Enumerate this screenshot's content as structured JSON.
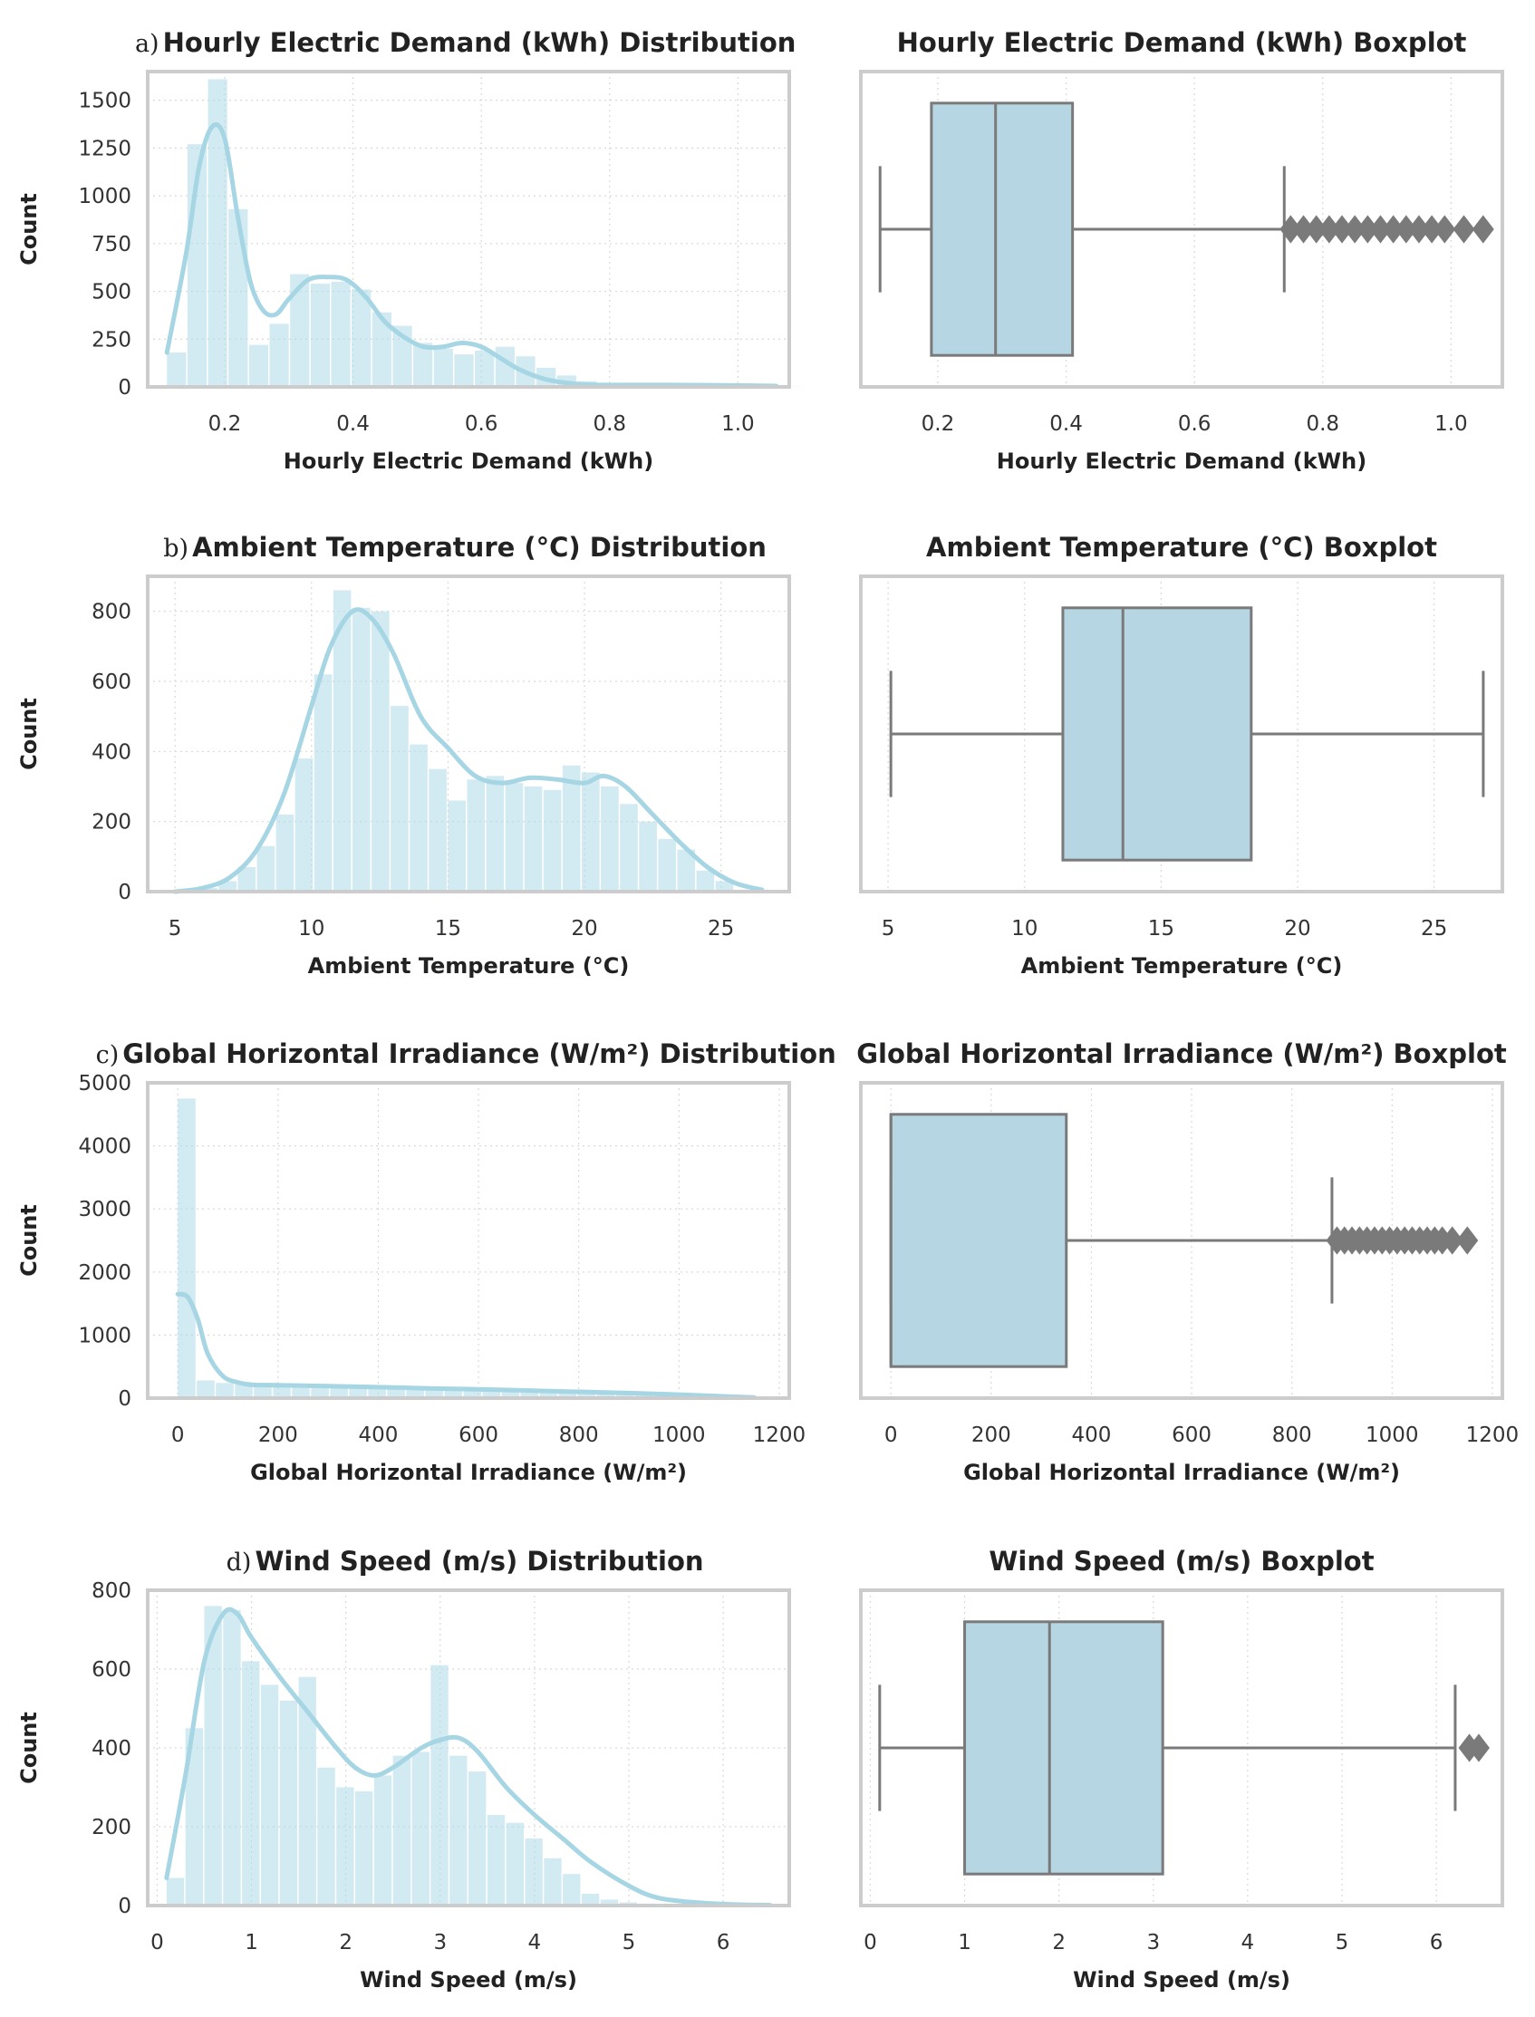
{
  "colors": {
    "bar": "#add8e6",
    "kde": "#a6d5e3",
    "box_fill": "#b5d6e2",
    "box_line": "#7a7a7a",
    "frame": "#cccccc",
    "grid": "#d9d9d9"
  },
  "chart_data": [
    {
      "type": "histogram",
      "panel_letter": "a)",
      "title": "Hourly Electric Demand (kWh) Distribution",
      "xlabel": "Hourly Electric Demand (kWh)",
      "ylabel": "Count",
      "xlim": [
        0.08,
        1.08
      ],
      "ylim": [
        0,
        1650
      ],
      "xticks": [
        0.2,
        0.4,
        0.6,
        0.8,
        1.0
      ],
      "xtick_labels": [
        "0.2",
        "0.4",
        "0.6",
        "0.8",
        "1.0"
      ],
      "yticks": [
        0,
        250,
        500,
        750,
        1000,
        1250,
        1500
      ],
      "ytick_labels": [
        "0",
        "250",
        "500",
        "750",
        "1000",
        "1250",
        "1500"
      ],
      "bin_start": 0.11,
      "bin_width": 0.032,
      "counts": [
        180,
        1270,
        1610,
        930,
        220,
        330,
        590,
        540,
        550,
        510,
        390,
        320,
        230,
        200,
        170,
        190,
        210,
        160,
        100,
        60,
        30,
        20,
        10,
        8,
        6,
        5,
        5,
        4,
        3,
        2,
        1
      ],
      "kde": {
        "x": [
          0.11,
          0.14,
          0.16,
          0.18,
          0.2,
          0.22,
          0.24,
          0.26,
          0.28,
          0.3,
          0.33,
          0.36,
          0.39,
          0.42,
          0.45,
          0.48,
          0.51,
          0.54,
          0.57,
          0.6,
          0.63,
          0.66,
          0.7,
          0.75,
          0.8,
          0.9,
          1.0,
          1.06
        ],
        "y": [
          180,
          700,
          1150,
          1360,
          1300,
          900,
          550,
          400,
          380,
          460,
          560,
          575,
          560,
          470,
          340,
          260,
          210,
          210,
          230,
          210,
          150,
          90,
          40,
          15,
          10,
          10,
          8,
          5
        ]
      }
    },
    {
      "type": "boxplot",
      "title": "Hourly Electric Demand (kWh) Boxplot",
      "xlabel": "Hourly Electric Demand (kWh)",
      "xlim": [
        0.08,
        1.08
      ],
      "xticks": [
        0.2,
        0.4,
        0.6,
        0.8,
        1.0
      ],
      "xtick_labels": [
        "0.2",
        "0.4",
        "0.6",
        "0.8",
        "1.0"
      ],
      "whisker_low": 0.11,
      "q1": 0.19,
      "median": 0.29,
      "q3": 0.41,
      "whisker_high": 0.74,
      "outliers": [
        0.75,
        0.77,
        0.79,
        0.81,
        0.83,
        0.85,
        0.87,
        0.89,
        0.91,
        0.93,
        0.95,
        0.97,
        0.99,
        1.02,
        1.05
      ]
    },
    {
      "type": "histogram",
      "panel_letter": "b)",
      "title": "Ambient Temperature (°C) Distribution",
      "xlabel": "Ambient Temperature (°C)",
      "ylabel": "Count",
      "xlim": [
        4,
        27.5
      ],
      "ylim": [
        0,
        900
      ],
      "xticks": [
        5,
        10,
        15,
        20,
        25
      ],
      "xtick_labels": [
        "5",
        "10",
        "15",
        "20",
        "25"
      ],
      "yticks": [
        0,
        200,
        400,
        600,
        800
      ],
      "ytick_labels": [
        "0",
        "200",
        "400",
        "600",
        "800"
      ],
      "bin_start": 5.9,
      "bin_width": 0.7,
      "counts": [
        10,
        30,
        70,
        130,
        220,
        380,
        620,
        860,
        810,
        800,
        530,
        420,
        350,
        260,
        320,
        330,
        310,
        300,
        290,
        360,
        340,
        300,
        250,
        200,
        150,
        120,
        60,
        30
      ],
      "kde": {
        "x": [
          5,
          6,
          7,
          8,
          9,
          10,
          10.7,
          11.5,
          12.2,
          13,
          14,
          15,
          16,
          17,
          18,
          19,
          20,
          20.7,
          21.5,
          22.5,
          23.5,
          24.5,
          25.5,
          26.5
        ],
        "y": [
          0,
          10,
          40,
          120,
          280,
          530,
          700,
          800,
          780,
          680,
          500,
          410,
          330,
          310,
          325,
          320,
          310,
          330,
          300,
          220,
          140,
          70,
          25,
          5
        ]
      }
    },
    {
      "type": "boxplot",
      "title": "Ambient Temperature (°C) Boxplot",
      "xlabel": "Ambient Temperature (°C)",
      "xlim": [
        4,
        27.5
      ],
      "xticks": [
        5,
        10,
        15,
        20,
        25
      ],
      "xtick_labels": [
        "5",
        "10",
        "15",
        "20",
        "25"
      ],
      "whisker_low": 5.1,
      "q1": 11.4,
      "median": 13.6,
      "q3": 18.3,
      "whisker_high": 26.8,
      "outliers": []
    },
    {
      "type": "histogram",
      "panel_letter": "c)",
      "title": "Global Horizontal Irradiance (W/m²) Distribution",
      "xlabel": "Global Horizontal Irradiance (W/m²)",
      "ylabel": "Count",
      "xlim": [
        -60,
        1220
      ],
      "ylim": [
        0,
        5000
      ],
      "xticks": [
        0,
        200,
        400,
        600,
        800,
        1000,
        1200
      ],
      "xtick_labels": [
        "0",
        "200",
        "400",
        "600",
        "800",
        "1000",
        "1200"
      ],
      "yticks": [
        0,
        1000,
        2000,
        3000,
        4000,
        5000
      ],
      "ytick_labels": [
        "0",
        "1000",
        "2000",
        "3000",
        "4000",
        "5000"
      ],
      "bin_start": 0,
      "bin_width": 38,
      "counts": [
        4750,
        280,
        240,
        220,
        210,
        205,
        200,
        200,
        195,
        190,
        185,
        180,
        175,
        170,
        165,
        160,
        150,
        145,
        140,
        130,
        120,
        110,
        100,
        90,
        80,
        70,
        60,
        50,
        40,
        30
      ],
      "kde": {
        "x": [
          0,
          20,
          40,
          60,
          90,
          120,
          150,
          200,
          300,
          400,
          500,
          600,
          700,
          800,
          900,
          1000,
          1100,
          1150
        ],
        "y": [
          1650,
          1600,
          1250,
          700,
          350,
          250,
          210,
          205,
          190,
          175,
          155,
          140,
          120,
          100,
          80,
          55,
          25,
          10
        ]
      }
    },
    {
      "type": "boxplot",
      "title": "Global Horizontal Irradiance (W/m²) Boxplot",
      "xlabel": "Global Horizontal Irradiance (W/m²)",
      "xlim": [
        -60,
        1220
      ],
      "xticks": [
        0,
        200,
        400,
        600,
        800,
        1000,
        1200
      ],
      "xtick_labels": [
        "0",
        "200",
        "400",
        "600",
        "800",
        "1000",
        "1200"
      ],
      "whisker_low": 0,
      "q1": 0,
      "median": 0,
      "q3": 350,
      "whisker_high": 880,
      "outliers": [
        890,
        905,
        920,
        935,
        950,
        965,
        980,
        995,
        1010,
        1025,
        1040,
        1055,
        1070,
        1085,
        1100,
        1120,
        1150
      ]
    },
    {
      "type": "histogram",
      "panel_letter": "d)",
      "title": "Wind Speed (m/s) Distribution",
      "xlabel": "Wind Speed (m/s)",
      "ylabel": "Count",
      "xlim": [
        -0.1,
        6.7
      ],
      "ylim": [
        0,
        800
      ],
      "xticks": [
        0,
        1,
        2,
        3,
        4,
        5,
        6
      ],
      "xtick_labels": [
        "0",
        "1",
        "2",
        "3",
        "4",
        "5",
        "6"
      ],
      "yticks": [
        0,
        200,
        400,
        600,
        800
      ],
      "ytick_labels": [
        "0",
        "200",
        "400",
        "600",
        "800"
      ],
      "bin_start": 0.1,
      "bin_width": 0.2,
      "counts": [
        70,
        450,
        760,
        750,
        620,
        560,
        520,
        580,
        350,
        300,
        290,
        330,
        380,
        390,
        610,
        380,
        340,
        230,
        210,
        170,
        120,
        80,
        30,
        15,
        8,
        5,
        3,
        2,
        1,
        1,
        1,
        1
      ],
      "kde": {
        "x": [
          0.1,
          0.3,
          0.5,
          0.7,
          0.85,
          1.0,
          1.3,
          1.6,
          1.9,
          2.1,
          2.3,
          2.5,
          2.8,
          3.0,
          3.2,
          3.4,
          3.7,
          4.0,
          4.3,
          4.6,
          5.0,
          5.3,
          5.7,
          6.1,
          6.5
        ],
        "y": [
          70,
          330,
          620,
          740,
          740,
          680,
          580,
          490,
          400,
          350,
          330,
          350,
          400,
          420,
          425,
          390,
          300,
          230,
          170,
          110,
          50,
          20,
          8,
          3,
          1
        ]
      }
    },
    {
      "type": "boxplot",
      "title": "Wind Speed (m/s) Boxplot",
      "xlabel": "Wind Speed (m/s)",
      "xlim": [
        -0.1,
        6.7
      ],
      "xticks": [
        0,
        1,
        2,
        3,
        4,
        5,
        6
      ],
      "xtick_labels": [
        "0",
        "1",
        "2",
        "3",
        "4",
        "5",
        "6"
      ],
      "whisker_low": 0.1,
      "q1": 1.0,
      "median": 1.9,
      "q3": 3.1,
      "whisker_high": 6.2,
      "outliers": [
        6.35,
        6.45
      ]
    }
  ]
}
